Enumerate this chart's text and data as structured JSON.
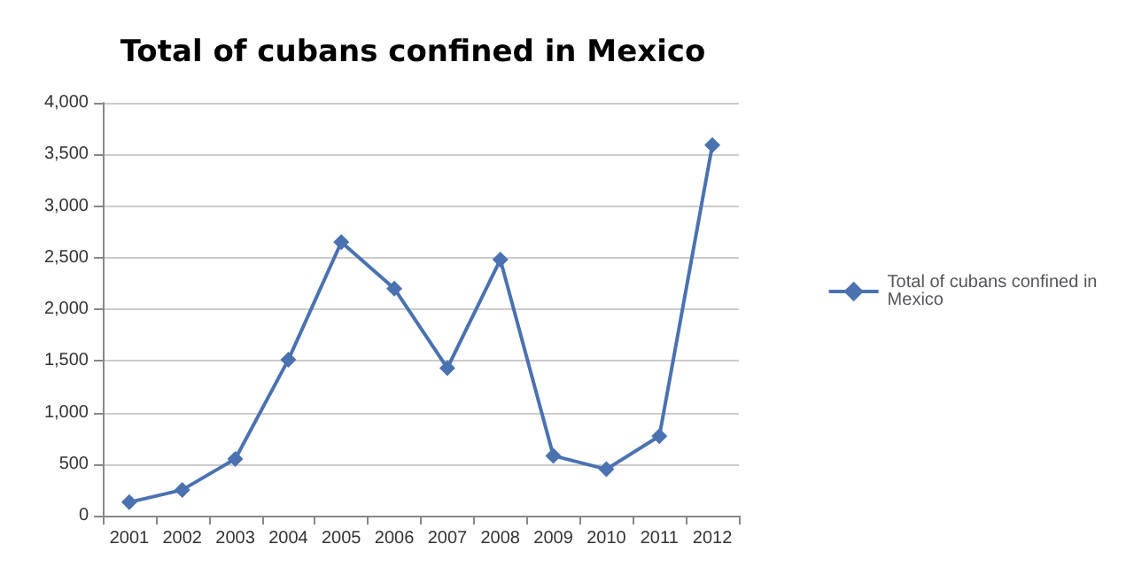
{
  "chart_data": {
    "type": "line",
    "title": "Total of cubans confined in Mexico",
    "categories": [
      "2001",
      "2002",
      "2003",
      "2004",
      "2005",
      "2006",
      "2007",
      "2008",
      "2009",
      "2010",
      "2011",
      "2012"
    ],
    "series": [
      {
        "name": "Total of cubans confined in Mexico",
        "color": "#4a72b0",
        "values": [
          130,
          250,
          550,
          1510,
          2650,
          2200,
          1430,
          2480,
          580,
          450,
          770,
          3590
        ]
      }
    ],
    "ylim": [
      0,
      4000
    ],
    "yticks": [
      {
        "value": 0,
        "label": "0"
      },
      {
        "value": 500,
        "label": "500"
      },
      {
        "value": 1000,
        "label": "1,000"
      },
      {
        "value": 1500,
        "label": "1,500"
      },
      {
        "value": 2000,
        "label": "2,000"
      },
      {
        "value": 2500,
        "label": "2,500"
      },
      {
        "value": 3000,
        "label": "3,000"
      },
      {
        "value": 3500,
        "label": "3,500"
      },
      {
        "value": 4000,
        "label": "4,000"
      }
    ],
    "grid": "y",
    "legend": "right",
    "marker": "diamond",
    "line_style": "solid"
  }
}
